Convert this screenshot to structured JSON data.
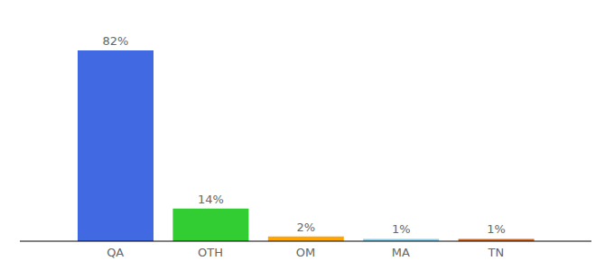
{
  "chart_data": {
    "type": "bar",
    "categories": [
      "QA",
      "OTH",
      "OM",
      "MA",
      "TN"
    ],
    "values": [
      82,
      14,
      2,
      1,
      1
    ],
    "value_labels": [
      "82%",
      "14%",
      "2%",
      "1%",
      "1%"
    ],
    "colors": [
      "#4169e1",
      "#32cd32",
      "#ffa500",
      "#87ceeb",
      "#d2691e"
    ],
    "data_labels": true,
    "tick_labels": "x",
    "grid": false
  }
}
